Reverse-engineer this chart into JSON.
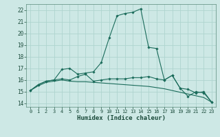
{
  "xlabel": "Humidex (Indice chaleur)",
  "background_color": "#cde8e5",
  "grid_color": "#aed4cf",
  "line_color": "#1a6b5a",
  "xlim": [
    -0.5,
    23.5
  ],
  "ylim": [
    13.7,
    22.5
  ],
  "yticks": [
    14,
    15,
    16,
    17,
    18,
    19,
    20,
    21,
    22
  ],
  "xticks": [
    0,
    1,
    2,
    3,
    4,
    5,
    6,
    7,
    8,
    9,
    10,
    11,
    12,
    13,
    14,
    15,
    16,
    17,
    18,
    19,
    20,
    21,
    22,
    23
  ],
  "line1_x": [
    0,
    1,
    2,
    3,
    4,
    5,
    6,
    7,
    8,
    9,
    10,
    11,
    12,
    13,
    14,
    15,
    16,
    17,
    18,
    19,
    20,
    21,
    22,
    23
  ],
  "line1_y": [
    15.1,
    15.6,
    15.9,
    16.0,
    16.9,
    17.0,
    16.5,
    16.6,
    16.7,
    17.5,
    19.6,
    21.5,
    21.7,
    21.8,
    22.1,
    18.8,
    18.7,
    16.0,
    16.4,
    15.3,
    14.6,
    15.0,
    14.9,
    14.1
  ],
  "line2_x": [
    0,
    1,
    2,
    3,
    4,
    5,
    6,
    7,
    8,
    9,
    10,
    11,
    12,
    13,
    14,
    15,
    16,
    17,
    18,
    19,
    20,
    21,
    22,
    23
  ],
  "line2_y": [
    15.1,
    15.6,
    15.9,
    16.0,
    16.1,
    16.0,
    16.3,
    16.5,
    15.9,
    16.0,
    16.1,
    16.1,
    16.1,
    16.2,
    16.2,
    16.3,
    16.1,
    16.0,
    16.4,
    15.3,
    15.2,
    14.9,
    15.0,
    14.1
  ],
  "line3_x": [
    0,
    1,
    2,
    3,
    4,
    5,
    6,
    7,
    8,
    9,
    10,
    11,
    12,
    13,
    14,
    15,
    16,
    17,
    18,
    19,
    20,
    21,
    22,
    23
  ],
  "line3_y": [
    15.1,
    15.5,
    15.8,
    15.9,
    16.0,
    15.9,
    15.85,
    15.85,
    15.8,
    15.75,
    15.7,
    15.65,
    15.6,
    15.55,
    15.5,
    15.45,
    15.35,
    15.25,
    15.1,
    14.95,
    14.8,
    14.65,
    14.5,
    14.1
  ]
}
